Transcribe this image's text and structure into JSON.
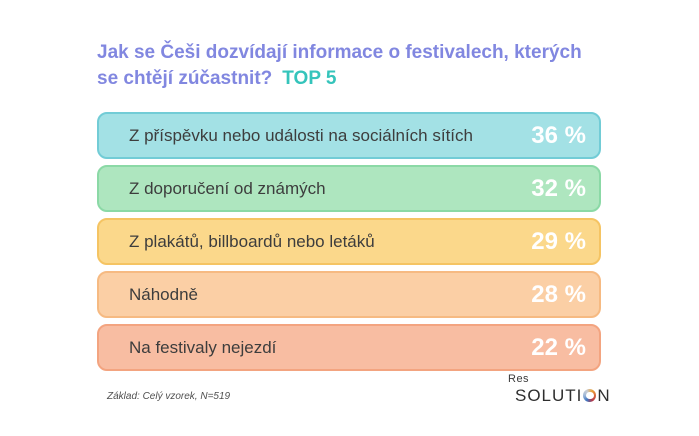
{
  "title": {
    "line1": "Jak se Češi dozvídají informace o festivalech, kterých",
    "line2": "se chtějí zúčastnit?",
    "highlight": "TOP 5",
    "title_color": "#8187e0",
    "highlight_color": "#35c4bb"
  },
  "chart_data": {
    "type": "bar",
    "orientation": "horizontal",
    "title": "Jak se Češi dozvídají informace o festivalech, kterých se chtějí zúčastnit? TOP 5",
    "categories": [
      "Z příspěvku nebo události na sociálních sítích",
      "Z doporučení od známých",
      "Z plakátů, billboardů nebo letáků",
      "Náhodně",
      "Na festivaly nejezdí"
    ],
    "values": [
      36,
      32,
      29,
      28,
      22
    ],
    "unit": "%",
    "value_labels": [
      "36 %",
      "32 %",
      "29 %",
      "28 %",
      "22 %"
    ],
    "grid": false,
    "legend": false,
    "note": "Bars are rendered equal width; values shown as right-aligned labels inside bars",
    "bar_fill_colors": [
      "#a3e1e5",
      "#aee6bf",
      "#fbd88b",
      "#fbcfa5",
      "#f8bda2"
    ],
    "bar_border_colors": [
      "#72ccd6",
      "#8bd9a6",
      "#f5c463",
      "#f6ba82",
      "#f3a480"
    ]
  },
  "bars": [
    {
      "label": "Z příspěvku nebo události na sociálních sítích",
      "value": "36 %",
      "fill": "#a3e1e5",
      "border": "#72ccd6"
    },
    {
      "label": "Z doporučení od známých",
      "value": "32 %",
      "fill": "#aee6bf",
      "border": "#8bd9a6"
    },
    {
      "label": "Z plakátů, billboardů nebo letáků",
      "value": "29 %",
      "fill": "#fbd88b",
      "border": "#f5c463"
    },
    {
      "label": "Náhodně",
      "value": "28 %",
      "fill": "#fbcfa5",
      "border": "#f6ba82"
    },
    {
      "label": "Na festivaly nejezdí",
      "value": "22 %",
      "fill": "#f8bda2",
      "border": "#f3a480"
    }
  ],
  "footer": {
    "note": "Základ: Celý vzorek, N=519",
    "logo_top": "Res",
    "logo_main_prefix": "SOLUTI",
    "logo_main_suffix": "N"
  }
}
